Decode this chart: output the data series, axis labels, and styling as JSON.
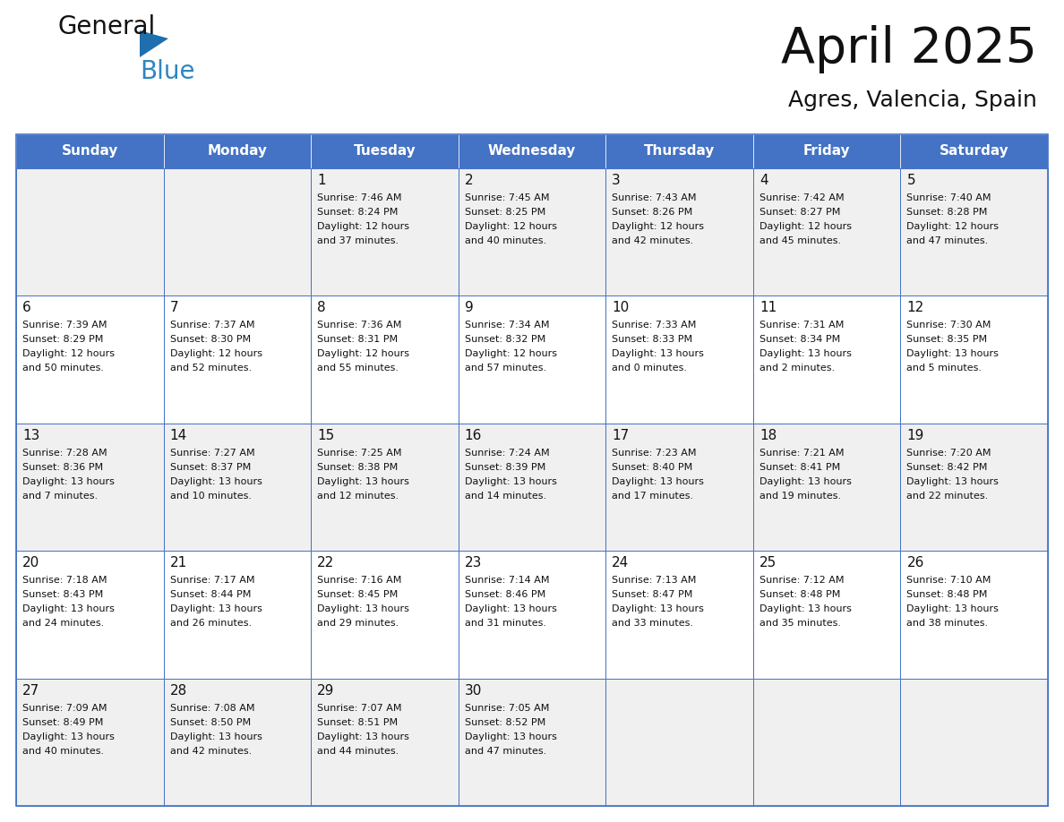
{
  "title": "April 2025",
  "subtitle": "Agres, Valencia, Spain",
  "header_bg_color": "#4472C4",
  "header_text_color": "#FFFFFF",
  "cell_bg_odd": "#F0F0F0",
  "cell_bg_even": "#FFFFFF",
  "grid_line_color": "#4472C4",
  "day_names": [
    "Sunday",
    "Monday",
    "Tuesday",
    "Wednesday",
    "Thursday",
    "Friday",
    "Saturday"
  ],
  "weeks": [
    [
      {
        "day": "",
        "sunrise": "",
        "sunset": "",
        "daylight": ""
      },
      {
        "day": "",
        "sunrise": "",
        "sunset": "",
        "daylight": ""
      },
      {
        "day": "1",
        "sunrise": "Sunrise: 7:46 AM",
        "sunset": "Sunset: 8:24 PM",
        "daylight": "Daylight: 12 hours\nand 37 minutes."
      },
      {
        "day": "2",
        "sunrise": "Sunrise: 7:45 AM",
        "sunset": "Sunset: 8:25 PM",
        "daylight": "Daylight: 12 hours\nand 40 minutes."
      },
      {
        "day": "3",
        "sunrise": "Sunrise: 7:43 AM",
        "sunset": "Sunset: 8:26 PM",
        "daylight": "Daylight: 12 hours\nand 42 minutes."
      },
      {
        "day": "4",
        "sunrise": "Sunrise: 7:42 AM",
        "sunset": "Sunset: 8:27 PM",
        "daylight": "Daylight: 12 hours\nand 45 minutes."
      },
      {
        "day": "5",
        "sunrise": "Sunrise: 7:40 AM",
        "sunset": "Sunset: 8:28 PM",
        "daylight": "Daylight: 12 hours\nand 47 minutes."
      }
    ],
    [
      {
        "day": "6",
        "sunrise": "Sunrise: 7:39 AM",
        "sunset": "Sunset: 8:29 PM",
        "daylight": "Daylight: 12 hours\nand 50 minutes."
      },
      {
        "day": "7",
        "sunrise": "Sunrise: 7:37 AM",
        "sunset": "Sunset: 8:30 PM",
        "daylight": "Daylight: 12 hours\nand 52 minutes."
      },
      {
        "day": "8",
        "sunrise": "Sunrise: 7:36 AM",
        "sunset": "Sunset: 8:31 PM",
        "daylight": "Daylight: 12 hours\nand 55 minutes."
      },
      {
        "day": "9",
        "sunrise": "Sunrise: 7:34 AM",
        "sunset": "Sunset: 8:32 PM",
        "daylight": "Daylight: 12 hours\nand 57 minutes."
      },
      {
        "day": "10",
        "sunrise": "Sunrise: 7:33 AM",
        "sunset": "Sunset: 8:33 PM",
        "daylight": "Daylight: 13 hours\nand 0 minutes."
      },
      {
        "day": "11",
        "sunrise": "Sunrise: 7:31 AM",
        "sunset": "Sunset: 8:34 PM",
        "daylight": "Daylight: 13 hours\nand 2 minutes."
      },
      {
        "day": "12",
        "sunrise": "Sunrise: 7:30 AM",
        "sunset": "Sunset: 8:35 PM",
        "daylight": "Daylight: 13 hours\nand 5 minutes."
      }
    ],
    [
      {
        "day": "13",
        "sunrise": "Sunrise: 7:28 AM",
        "sunset": "Sunset: 8:36 PM",
        "daylight": "Daylight: 13 hours\nand 7 minutes."
      },
      {
        "day": "14",
        "sunrise": "Sunrise: 7:27 AM",
        "sunset": "Sunset: 8:37 PM",
        "daylight": "Daylight: 13 hours\nand 10 minutes."
      },
      {
        "day": "15",
        "sunrise": "Sunrise: 7:25 AM",
        "sunset": "Sunset: 8:38 PM",
        "daylight": "Daylight: 13 hours\nand 12 minutes."
      },
      {
        "day": "16",
        "sunrise": "Sunrise: 7:24 AM",
        "sunset": "Sunset: 8:39 PM",
        "daylight": "Daylight: 13 hours\nand 14 minutes."
      },
      {
        "day": "17",
        "sunrise": "Sunrise: 7:23 AM",
        "sunset": "Sunset: 8:40 PM",
        "daylight": "Daylight: 13 hours\nand 17 minutes."
      },
      {
        "day": "18",
        "sunrise": "Sunrise: 7:21 AM",
        "sunset": "Sunset: 8:41 PM",
        "daylight": "Daylight: 13 hours\nand 19 minutes."
      },
      {
        "day": "19",
        "sunrise": "Sunrise: 7:20 AM",
        "sunset": "Sunset: 8:42 PM",
        "daylight": "Daylight: 13 hours\nand 22 minutes."
      }
    ],
    [
      {
        "day": "20",
        "sunrise": "Sunrise: 7:18 AM",
        "sunset": "Sunset: 8:43 PM",
        "daylight": "Daylight: 13 hours\nand 24 minutes."
      },
      {
        "day": "21",
        "sunrise": "Sunrise: 7:17 AM",
        "sunset": "Sunset: 8:44 PM",
        "daylight": "Daylight: 13 hours\nand 26 minutes."
      },
      {
        "day": "22",
        "sunrise": "Sunrise: 7:16 AM",
        "sunset": "Sunset: 8:45 PM",
        "daylight": "Daylight: 13 hours\nand 29 minutes."
      },
      {
        "day": "23",
        "sunrise": "Sunrise: 7:14 AM",
        "sunset": "Sunset: 8:46 PM",
        "daylight": "Daylight: 13 hours\nand 31 minutes."
      },
      {
        "day": "24",
        "sunrise": "Sunrise: 7:13 AM",
        "sunset": "Sunset: 8:47 PM",
        "daylight": "Daylight: 13 hours\nand 33 minutes."
      },
      {
        "day": "25",
        "sunrise": "Sunrise: 7:12 AM",
        "sunset": "Sunset: 8:48 PM",
        "daylight": "Daylight: 13 hours\nand 35 minutes."
      },
      {
        "day": "26",
        "sunrise": "Sunrise: 7:10 AM",
        "sunset": "Sunset: 8:48 PM",
        "daylight": "Daylight: 13 hours\nand 38 minutes."
      }
    ],
    [
      {
        "day": "27",
        "sunrise": "Sunrise: 7:09 AM",
        "sunset": "Sunset: 8:49 PM",
        "daylight": "Daylight: 13 hours\nand 40 minutes."
      },
      {
        "day": "28",
        "sunrise": "Sunrise: 7:08 AM",
        "sunset": "Sunset: 8:50 PM",
        "daylight": "Daylight: 13 hours\nand 42 minutes."
      },
      {
        "day": "29",
        "sunrise": "Sunrise: 7:07 AM",
        "sunset": "Sunset: 8:51 PM",
        "daylight": "Daylight: 13 hours\nand 44 minutes."
      },
      {
        "day": "30",
        "sunrise": "Sunrise: 7:05 AM",
        "sunset": "Sunset: 8:52 PM",
        "daylight": "Daylight: 13 hours\nand 47 minutes."
      },
      {
        "day": "",
        "sunrise": "",
        "sunset": "",
        "daylight": ""
      },
      {
        "day": "",
        "sunrise": "",
        "sunset": "",
        "daylight": ""
      },
      {
        "day": "",
        "sunrise": "",
        "sunset": "",
        "daylight": ""
      }
    ]
  ],
  "logo_color_general": "#111111",
  "logo_color_blue": "#2E86C1",
  "logo_triangle_color": "#1F6FAE",
  "fig_width": 11.88,
  "fig_height": 9.18,
  "dpi": 100
}
